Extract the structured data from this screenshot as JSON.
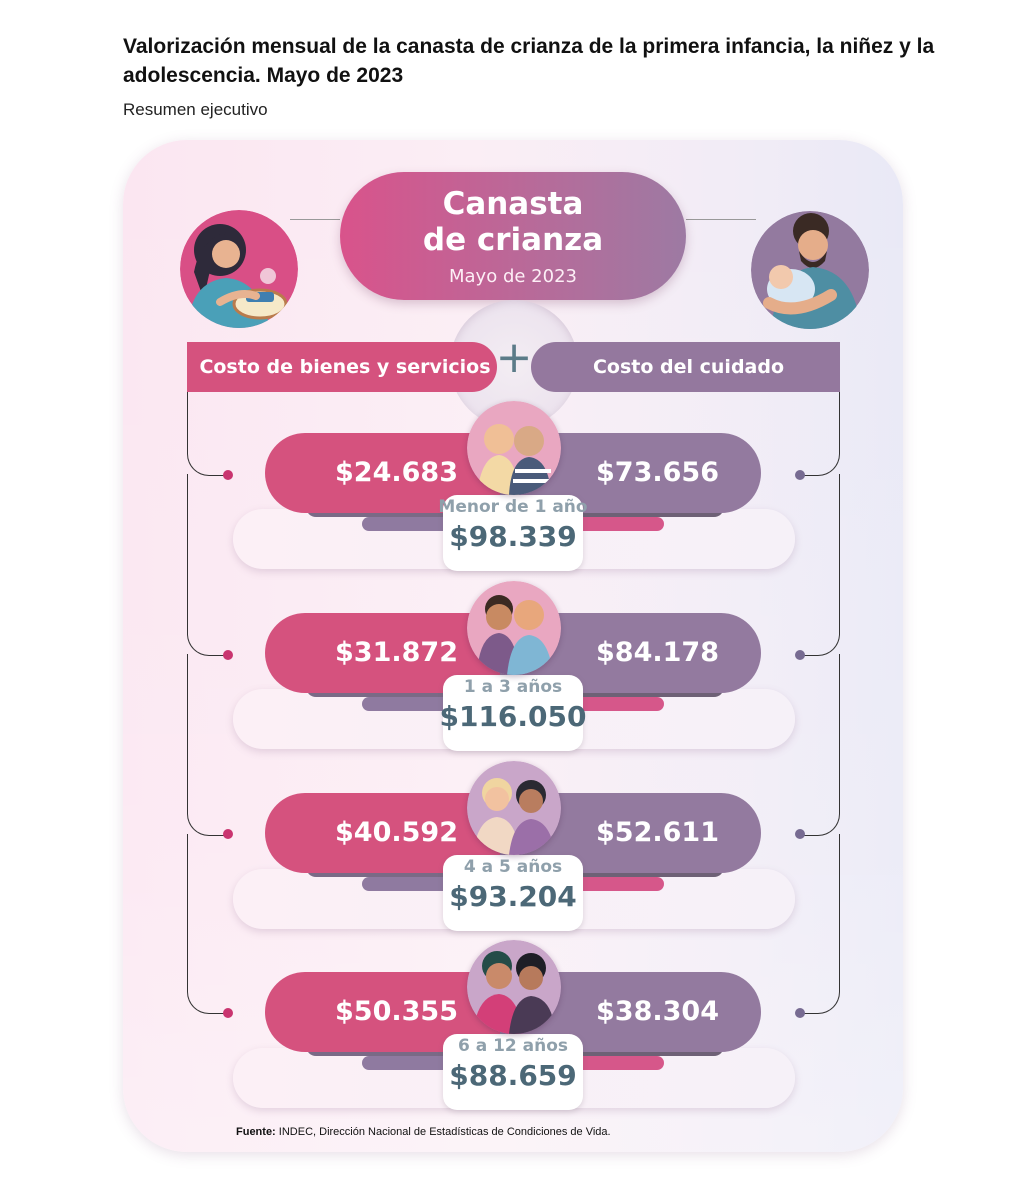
{
  "header": {
    "title": "Valorización mensual de la canasta de crianza de la primera infancia, la niñez y la adolescencia. Mayo de 2023",
    "subtitle": "Resumen ejecutivo"
  },
  "infographic": {
    "title": "Canasta\nde crianza",
    "date": "Mayo de 2023",
    "plus": "+",
    "left_header": "Costo de bienes y servicios",
    "right_header": "Costo del cuidado",
    "rows": [
      {
        "age": "Menor de 1 año",
        "goods": "$24.683",
        "care": "$73.656",
        "total": "$98.339"
      },
      {
        "age": "1 a 3 años",
        "goods": "$31.872",
        "care": "$84.178",
        "total": "$116.050"
      },
      {
        "age": "4 a 5 años",
        "goods": "$40.592",
        "care": "$52.611",
        "total": "$93.204"
      },
      {
        "age": "6 a 12 años",
        "goods": "$50.355",
        "care": "$38.304",
        "total": "$88.659"
      }
    ]
  },
  "footer": {
    "source_label": "Fuente:",
    "source_text": "INDEC, Dirección Nacional de Estadísticas de Condiciones de Vida."
  },
  "colors": {
    "goods": "#d5527e",
    "care": "#937a9f",
    "total_text": "#4c6877",
    "age_text": "#8fa0ab"
  }
}
